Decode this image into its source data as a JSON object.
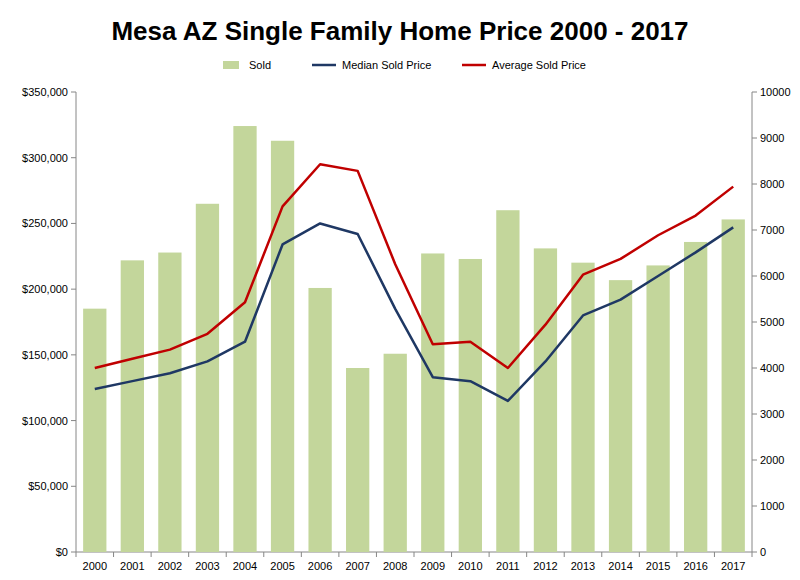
{
  "chart_data": {
    "type": "bar",
    "title": "Mesa AZ Single Family Home Price 2000 - 2017",
    "categories": [
      "2000",
      "2001",
      "2002",
      "2003",
      "2004",
      "2005",
      "2006",
      "2007",
      "2008",
      "2009",
      "2010",
      "2011",
      "2012",
      "2013",
      "2014",
      "2015",
      "2016",
      "2017"
    ],
    "series": [
      {
        "name": "Sold",
        "type": "bar",
        "axis": "y2",
        "color": "#c3d69b",
        "values": [
          5290,
          6340,
          6510,
          7570,
          9260,
          8940,
          5740,
          4000,
          4310,
          6490,
          6370,
          7430,
          6600,
          6290,
          5910,
          6230,
          6740,
          7230
        ]
      },
      {
        "name": "Median Sold Price",
        "type": "line",
        "color": "#1f3864",
        "values": [
          124000,
          130000,
          136000,
          145000,
          160000,
          234000,
          250000,
          242000,
          185000,
          133000,
          130000,
          115000,
          145000,
          180000,
          192000,
          210000,
          228000,
          247000
        ]
      },
      {
        "name": "Average Sold Price",
        "type": "line",
        "color": "#c00000",
        "values": [
          140000,
          147000,
          154000,
          166000,
          190000,
          263000,
          295000,
          290000,
          219000,
          158000,
          160000,
          140000,
          173000,
          211000,
          223000,
          241000,
          256000,
          278000
        ]
      }
    ],
    "ylim": [
      0,
      350000
    ],
    "yticks": [
      {
        "value": 0,
        "label": "$0"
      },
      {
        "value": 50000,
        "label": "$50,000"
      },
      {
        "value": 100000,
        "label": "$100,000"
      },
      {
        "value": 150000,
        "label": "$150,000"
      },
      {
        "value": 200000,
        "label": "$200,000"
      },
      {
        "value": 250000,
        "label": "$250,000"
      },
      {
        "value": 300000,
        "label": "$300,000"
      },
      {
        "value": 350000,
        "label": "$350,000"
      }
    ],
    "y2lim": [
      0,
      10000
    ],
    "y2ticks": [
      0,
      1000,
      2000,
      3000,
      4000,
      5000,
      6000,
      7000,
      8000,
      9000,
      10000
    ],
    "grid": false,
    "legend": "top"
  }
}
